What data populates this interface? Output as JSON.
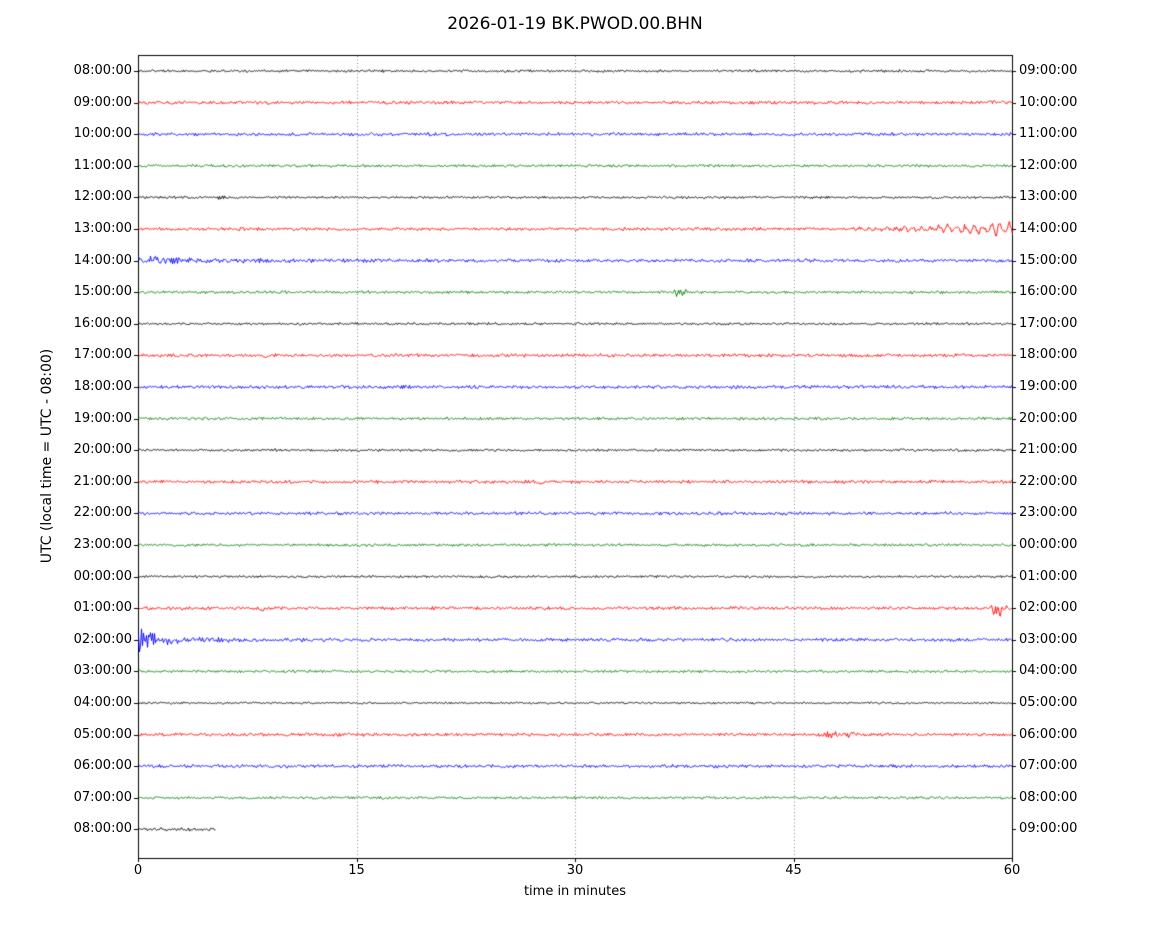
{
  "title": "2026-01-19 BK.PWOD.00.BHN",
  "chart_data": {
    "type": "line",
    "subtype": "seismogram-dayplot",
    "title": "2026-01-19 BK.PWOD.00.BHN",
    "date": "2026-01-19",
    "station": "BK.PWOD.00.BHN",
    "xlabel": "time in minutes",
    "ylabel": "UTC (local time = UTC - 08:00)",
    "xlim": [
      0,
      60
    ],
    "xticks": [
      0,
      15,
      30,
      45,
      60
    ],
    "xtick_labels": [
      "0",
      "15",
      "30",
      "45",
      "60"
    ],
    "grid": "vertical-dotted-at-interior-xticks",
    "minutes_per_row": 60,
    "trace_colors": {
      "black": "#000000",
      "red": "#ff0000",
      "blue": "#0000ff",
      "green": "#008000"
    },
    "rows": [
      {
        "left_label": "08:00:00",
        "right_label": "09:00:00",
        "color": "black",
        "noise_amp": 0.9,
        "events": []
      },
      {
        "left_label": "09:00:00",
        "right_label": "10:00:00",
        "color": "red",
        "noise_amp": 1.2,
        "events": []
      },
      {
        "left_label": "10:00:00",
        "right_label": "11:00:00",
        "color": "blue",
        "noise_amp": 1.2,
        "events": []
      },
      {
        "left_label": "11:00:00",
        "right_label": "12:00:00",
        "color": "green",
        "noise_amp": 1.0,
        "events": []
      },
      {
        "left_label": "12:00:00",
        "right_label": "13:00:00",
        "color": "black",
        "noise_amp": 0.9,
        "events": [
          {
            "type": "burst",
            "start": 5.3,
            "duration": 1.0,
            "amp": 1.3
          }
        ]
      },
      {
        "left_label": "13:00:00",
        "right_label": "14:00:00",
        "color": "red",
        "noise_amp": 1.2,
        "events": [
          {
            "type": "osc",
            "start": 44,
            "end": 60,
            "amp": 5,
            "period": 0.6
          }
        ]
      },
      {
        "left_label": "14:00:00",
        "right_label": "15:00:00",
        "color": "blue",
        "noise_amp": 1.2,
        "events": [
          {
            "type": "decay",
            "start": 0,
            "amp": 2.2,
            "tau": 5
          }
        ]
      },
      {
        "left_label": "15:00:00",
        "right_label": "16:00:00",
        "color": "green",
        "noise_amp": 1.0,
        "events": [
          {
            "type": "burst",
            "start": 36.6,
            "duration": 1.4,
            "amp": 3.0
          }
        ]
      },
      {
        "left_label": "16:00:00",
        "right_label": "17:00:00",
        "color": "black",
        "noise_amp": 0.9,
        "events": []
      },
      {
        "left_label": "17:00:00",
        "right_label": "18:00:00",
        "color": "red",
        "noise_amp": 1.2,
        "events": [
          {
            "type": "dip",
            "center": 8.7,
            "width": 0.18,
            "amp": 1.6
          }
        ]
      },
      {
        "left_label": "18:00:00",
        "right_label": "19:00:00",
        "color": "blue",
        "noise_amp": 1.2,
        "events": []
      },
      {
        "left_label": "19:00:00",
        "right_label": "20:00:00",
        "color": "green",
        "noise_amp": 1.0,
        "events": []
      },
      {
        "left_label": "20:00:00",
        "right_label": "21:00:00",
        "color": "black",
        "noise_amp": 0.9,
        "events": []
      },
      {
        "left_label": "21:00:00",
        "right_label": "22:00:00",
        "color": "red",
        "noise_amp": 1.2,
        "events": [
          {
            "type": "dip",
            "center": 27.6,
            "width": 0.3,
            "amp": 2.2
          }
        ]
      },
      {
        "left_label": "22:00:00",
        "right_label": "23:00:00",
        "color": "blue",
        "noise_amp": 1.2,
        "events": []
      },
      {
        "left_label": "23:00:00",
        "right_label": "00:00:00",
        "color": "green",
        "noise_amp": 1.0,
        "events": []
      },
      {
        "left_label": "00:00:00",
        "right_label": "01:00:00",
        "color": "black",
        "noise_amp": 0.9,
        "events": []
      },
      {
        "left_label": "01:00:00",
        "right_label": "02:00:00",
        "color": "red",
        "noise_amp": 1.2,
        "events": [
          {
            "type": "dip",
            "center": 8.5,
            "width": 0.15,
            "amp": 3.2
          },
          {
            "type": "burst",
            "start": 58.4,
            "duration": 1.6,
            "amp": 6.5
          }
        ]
      },
      {
        "left_label": "02:00:00",
        "right_label": "03:00:00",
        "color": "blue",
        "noise_amp": 1.2,
        "events": [
          {
            "type": "decay",
            "start": 0,
            "amp": 11,
            "tau": 1.1
          },
          {
            "type": "decay",
            "start": 0,
            "amp": 2.0,
            "tau": 4.5
          }
        ]
      },
      {
        "left_label": "03:00:00",
        "right_label": "04:00:00",
        "color": "green",
        "noise_amp": 1.0,
        "events": []
      },
      {
        "left_label": "04:00:00",
        "right_label": "05:00:00",
        "color": "black",
        "noise_amp": 0.75,
        "events": [
          {
            "type": "burst",
            "start": 33,
            "duration": 0.8,
            "amp": 1.0
          }
        ]
      },
      {
        "left_label": "05:00:00",
        "right_label": "06:00:00",
        "color": "red",
        "noise_amp": 1.2,
        "events": [
          {
            "type": "burst",
            "start": 46.5,
            "duration": 4.0,
            "amp": 1.3
          }
        ]
      },
      {
        "left_label": "06:00:00",
        "right_label": "07:00:00",
        "color": "blue",
        "noise_amp": 1.2,
        "events": []
      },
      {
        "left_label": "07:00:00",
        "right_label": "08:00:00",
        "color": "green",
        "noise_amp": 1.0,
        "events": []
      },
      {
        "left_label": "08:00:00",
        "right_label": "09:00:00",
        "color": "black",
        "noise_amp": 1.3,
        "events": [],
        "end_minute": 5.3
      }
    ]
  }
}
